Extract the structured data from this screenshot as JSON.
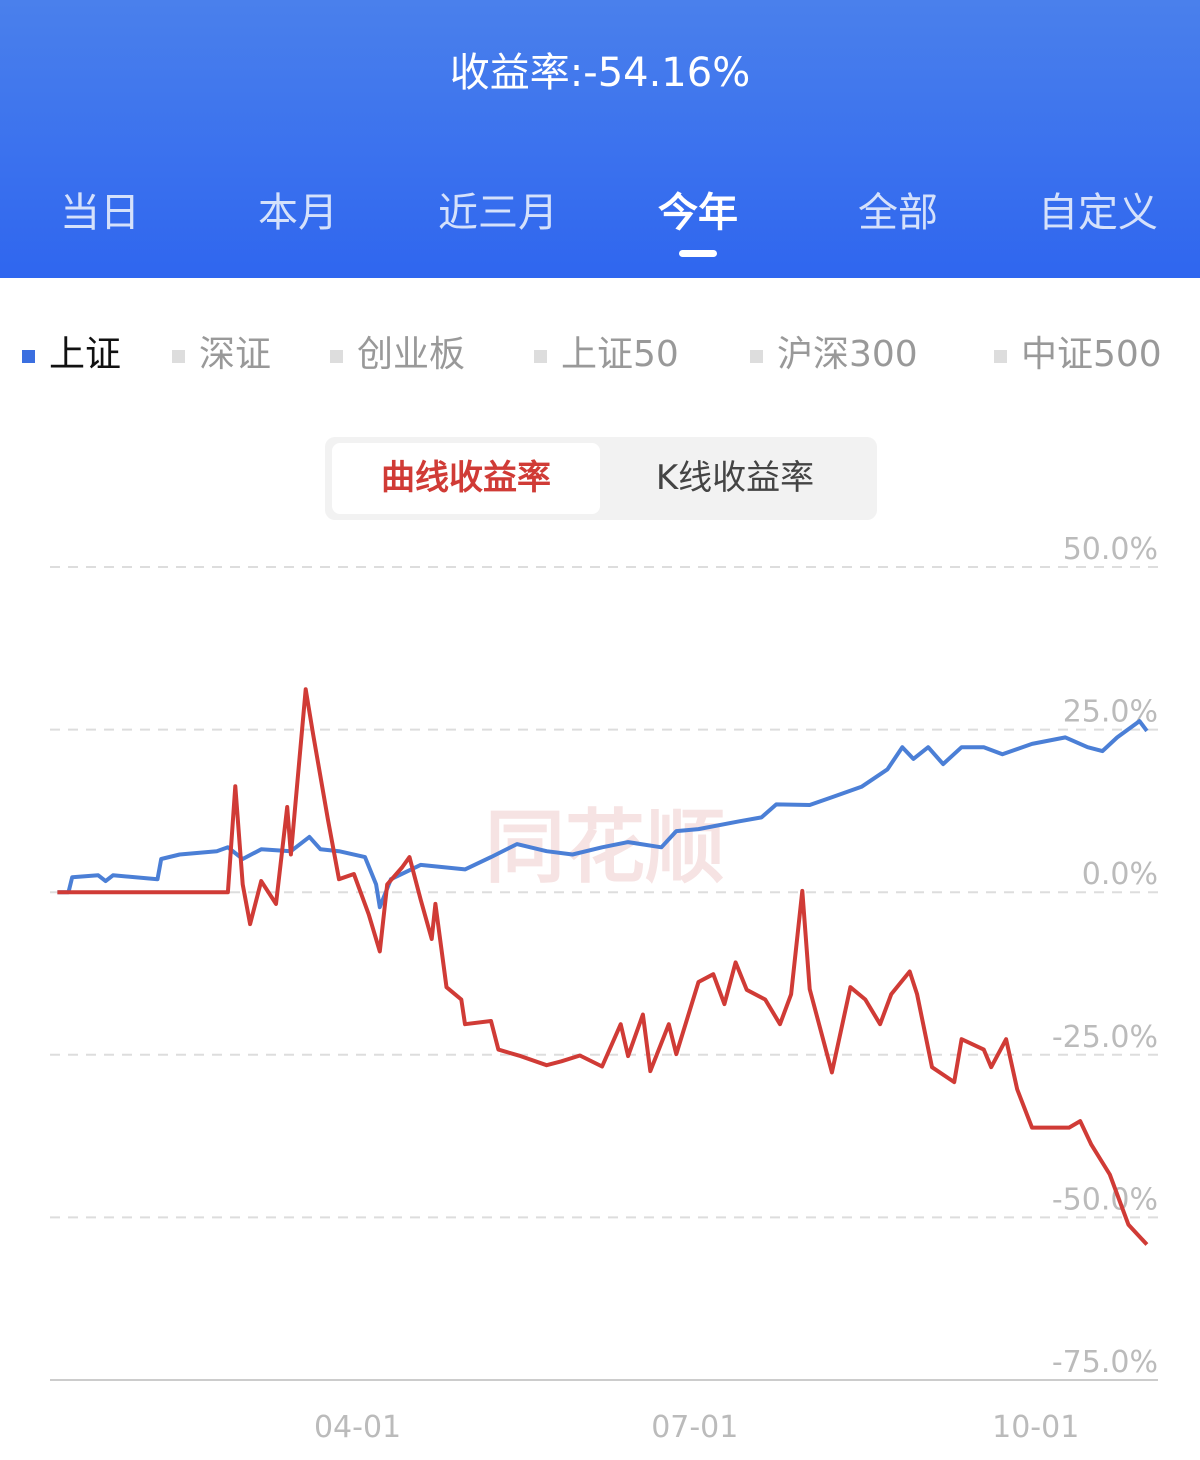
{
  "header": {
    "title": "收益率:-54.16%",
    "tabs": [
      "当日",
      "本月",
      "近三月",
      "今年",
      "全部",
      "自定义"
    ]
  },
  "index_tabs": [
    "上证",
    "深证",
    "创业板",
    "上证50",
    "沪深300",
    "中证500"
  ],
  "toggle": [
    "曲线收益率",
    "K线收益率"
  ],
  "watermark": "同花顺",
  "chart_data": {
    "type": "line",
    "xlim": [
      "01-08",
      "11-03"
    ],
    "xticks": [
      "04-01",
      "07-01",
      "10-01"
    ],
    "ylim": [
      -75,
      50
    ],
    "yticks": [
      {
        "value": 50,
        "label": "50.0%"
      },
      {
        "value": 25,
        "label": "25.0%"
      },
      {
        "value": 0,
        "label": "0.0%"
      },
      {
        "value": -25,
        "label": "-25.0%"
      },
      {
        "value": -50,
        "label": "-50.0%"
      },
      {
        "value": -75,
        "label": "-75.0%"
      }
    ],
    "grid": true,
    "series": [
      {
        "color": "#4b7fd6",
        "x": [
          "01-10",
          "01-13",
          "01-14",
          "01-21",
          "01-23",
          "01-25",
          "02-06",
          "02-07",
          "02-12",
          "02-22",
          "02-25",
          "03-01",
          "03-06",
          "03-14",
          "03-19",
          "03-22",
          "03-27",
          "04-03",
          "04-06",
          "04-07",
          "04-10",
          "04-18",
          "04-30",
          "05-07",
          "05-14",
          "05-22",
          "05-29",
          "06-06",
          "06-13",
          "06-22",
          "06-26",
          "07-02",
          "07-13",
          "07-19",
          "07-23",
          "08-01",
          "08-07",
          "08-15",
          "08-22",
          "08-26",
          "08-29",
          "09-02",
          "09-06",
          "09-11",
          "09-17",
          "09-22",
          "09-30",
          "10-09",
          "10-15",
          "10-19",
          "10-23",
          "10-29",
          "10-31"
        ],
        "values": [
          0,
          0,
          2.3,
          2.6,
          1.7,
          2.6,
          2.0,
          5.1,
          5.8,
          6.3,
          6.9,
          5.1,
          6.6,
          6.3,
          8.5,
          6.6,
          6.3,
          5.4,
          1.2,
          -2.3,
          2.0,
          4.2,
          3.5,
          5.4,
          7.4,
          6.3,
          5.8,
          6.9,
          7.7,
          6.9,
          9.4,
          9.7,
          10.9,
          11.5,
          13.5,
          13.4,
          14.6,
          16.2,
          18.9,
          22.3,
          20.5,
          22.3,
          19.7,
          22.3,
          22.3,
          21.2,
          22.8,
          23.8,
          22.3,
          21.7,
          23.8,
          26.3,
          24.8
        ]
      },
      {
        "color": "#d03b36",
        "x": [
          "01-10",
          "02-25",
          "02-27",
          "03-01",
          "03-03",
          "03-06",
          "03-10",
          "03-13",
          "03-14",
          "03-18",
          "03-20",
          "03-24",
          "03-27",
          "03-31",
          "04-04",
          "04-07",
          "04-09",
          "04-13",
          "04-15",
          "04-18",
          "04-21",
          "04-22",
          "04-25",
          "04-29",
          "04-30",
          "05-07",
          "05-09",
          "05-15",
          "05-22",
          "05-26",
          "05-31",
          "06-06",
          "06-11",
          "06-13",
          "06-17",
          "06-19",
          "06-24",
          "06-26",
          "07-02",
          "07-06",
          "07-09",
          "07-12",
          "07-15",
          "07-20",
          "07-24",
          "07-27",
          "07-30",
          "08-01",
          "08-07",
          "08-12",
          "08-16",
          "08-20",
          "08-23",
          "08-28",
          "08-30",
          "09-03",
          "09-09",
          "09-11",
          "09-17",
          "09-19",
          "09-23",
          "09-26",
          "09-30",
          "10-10",
          "10-13",
          "10-16",
          "10-21",
          "10-26",
          "10-31"
        ],
        "values": [
          0,
          0,
          16.3,
          1.2,
          -4.9,
          1.7,
          -1.8,
          13.1,
          5.8,
          31.2,
          24.3,
          11.2,
          2.0,
          2.8,
          -3.4,
          -9.1,
          1.2,
          3.8,
          5.4,
          -1.1,
          -7.2,
          -1.8,
          -14.6,
          -16.5,
          -20.3,
          -19.8,
          -24.2,
          -25.2,
          -26.6,
          -26.0,
          -25.1,
          -26.8,
          -20.3,
          -25.2,
          -18.8,
          -27.5,
          -20.3,
          -24.9,
          -13.8,
          -12.6,
          -17.2,
          -10.8,
          -15.0,
          -16.5,
          -20.3,
          -15.7,
          0.2,
          -14.9,
          -27.7,
          -14.6,
          -16.5,
          -20.3,
          -15.7,
          -12.2,
          -15.7,
          -26.9,
          -29.2,
          -22.6,
          -24.2,
          -26.9,
          -22.6,
          -30.3,
          -36.2,
          -36.2,
          -35.2,
          -38.8,
          -43.4,
          -51.1,
          -54.16
        ]
      }
    ]
  }
}
